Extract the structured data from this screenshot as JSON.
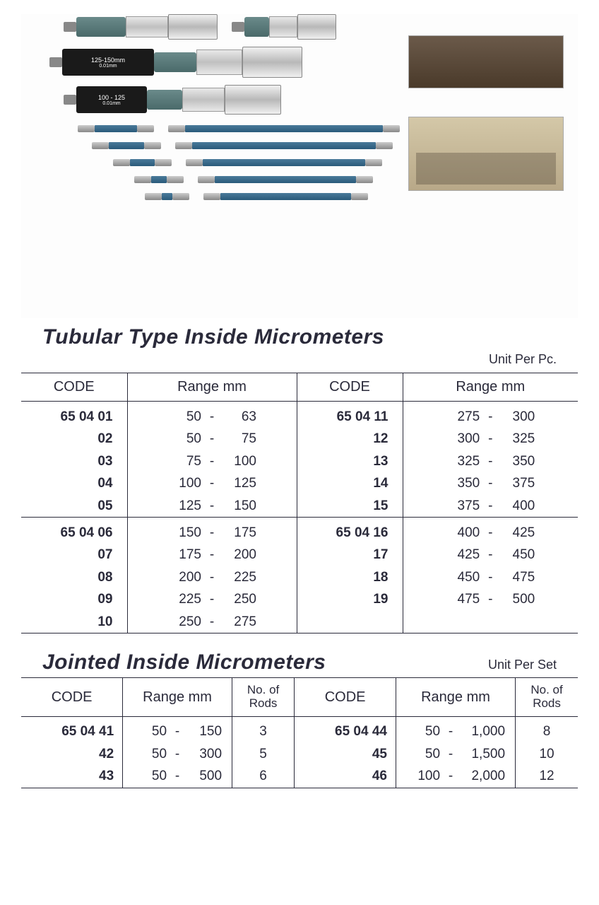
{
  "product_labels": {
    "mic1": "125-150mm",
    "mic1_sub": "0.01mm",
    "mic2": "100 - 125",
    "mic2_sub": "0.01mm"
  },
  "tubular": {
    "title": "Tubular Type Inside Micrometers",
    "unit_label": "Unit Per Pc.",
    "headers": {
      "code": "CODE",
      "range": "Range mm"
    },
    "left_block1": [
      {
        "code": "65 04 01",
        "from": "50",
        "to": "63"
      },
      {
        "code": "02",
        "from": "50",
        "to": "75"
      },
      {
        "code": "03",
        "from": "75",
        "to": "100"
      },
      {
        "code": "04",
        "from": "100",
        "to": "125"
      },
      {
        "code": "05",
        "from": "125",
        "to": "150"
      }
    ],
    "right_block1": [
      {
        "code": "65 04 11",
        "from": "275",
        "to": "300"
      },
      {
        "code": "12",
        "from": "300",
        "to": "325"
      },
      {
        "code": "13",
        "from": "325",
        "to": "350"
      },
      {
        "code": "14",
        "from": "350",
        "to": "375"
      },
      {
        "code": "15",
        "from": "375",
        "to": "400"
      }
    ],
    "left_block2": [
      {
        "code": "65 04 06",
        "from": "150",
        "to": "175"
      },
      {
        "code": "07",
        "from": "175",
        "to": "200"
      },
      {
        "code": "08",
        "from": "200",
        "to": "225"
      },
      {
        "code": "09",
        "from": "225",
        "to": "250"
      },
      {
        "code": "10",
        "from": "250",
        "to": "275"
      }
    ],
    "right_block2": [
      {
        "code": "65 04 16",
        "from": "400",
        "to": "425"
      },
      {
        "code": "17",
        "from": "425",
        "to": "450"
      },
      {
        "code": "18",
        "from": "450",
        "to": "475"
      },
      {
        "code": "19",
        "from": "475",
        "to": "500"
      }
    ]
  },
  "jointed": {
    "title": "Jointed Inside Micrometers",
    "unit_label": "Unit Per Set",
    "headers": {
      "code": "CODE",
      "range": "Range mm",
      "rods": "No. of Rods"
    },
    "left": [
      {
        "code": "65 04 41",
        "from": "50",
        "to": "150",
        "rods": "3"
      },
      {
        "code": "42",
        "from": "50",
        "to": "300",
        "rods": "5"
      },
      {
        "code": "43",
        "from": "50",
        "to": "500",
        "rods": "6"
      }
    ],
    "right": [
      {
        "code": "65 04 44",
        "from": "50",
        "to": "1,000",
        "rods": "8"
      },
      {
        "code": "45",
        "from": "50",
        "to": "1,500",
        "rods": "10"
      },
      {
        "code": "46",
        "from": "100",
        "to": "2,000",
        "rods": "12"
      }
    ]
  },
  "styling": {
    "text_color": "#2a2a3a",
    "border_color": "#2a2a3a",
    "background": "#ffffff",
    "title_fontsize": 30,
    "body_fontsize": 19,
    "rod_color": "#2a5a7a",
    "micrometer_body_color": "#4a6a6a"
  }
}
